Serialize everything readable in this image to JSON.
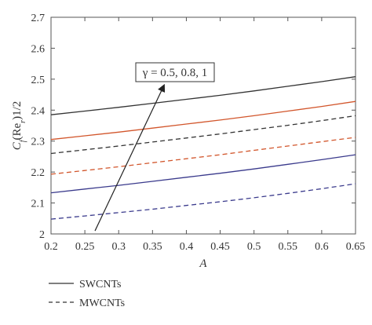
{
  "chart_data": {
    "type": "line",
    "xlabel": "A",
    "ylabel": "Cf(Rer)1/2",
    "ylabel_parts": {
      "main": "C",
      "sub1": "f",
      "paren_open": "(Re",
      "sub2": "r",
      "rest": ")1/2"
    },
    "xlim": [
      0.2,
      0.65
    ],
    "ylim": [
      2.0,
      2.7
    ],
    "x_ticks": [
      "0.2",
      "0.25",
      "0.3",
      "0.35",
      "0.4",
      "0.45",
      "0.5",
      "0.55",
      "0.6",
      "0.65"
    ],
    "y_ticks": [
      "2",
      "2.1",
      "2.2",
      "2.3",
      "2.4",
      "2.5",
      "2.6",
      "2.7"
    ],
    "grid": false,
    "x": [
      0.2,
      0.25,
      0.3,
      0.35,
      0.4,
      0.45,
      0.5,
      0.55,
      0.6,
      0.65
    ],
    "series": [
      {
        "group": "SWCNTs",
        "dash": "solid",
        "color": "#333333",
        "values": [
          2.385,
          2.397,
          2.409,
          2.422,
          2.435,
          2.448,
          2.462,
          2.477,
          2.492,
          2.508
        ]
      },
      {
        "group": "SWCNTs",
        "dash": "solid",
        "color": "#d2562c",
        "values": [
          2.305,
          2.317,
          2.329,
          2.342,
          2.355,
          2.368,
          2.382,
          2.397,
          2.412,
          2.428
        ]
      },
      {
        "group": "SWCNTs",
        "dash": "solid",
        "color": "#3a3a8c",
        "values": [
          2.133,
          2.145,
          2.157,
          2.17,
          2.183,
          2.196,
          2.21,
          2.225,
          2.24,
          2.256
        ]
      },
      {
        "group": "MWCNTs",
        "dash": "dashed",
        "color": "#333333",
        "values": [
          2.26,
          2.272,
          2.284,
          2.297,
          2.31,
          2.323,
          2.337,
          2.351,
          2.366,
          2.382
        ]
      },
      {
        "group": "MWCNTs",
        "dash": "dashed",
        "color": "#d2562c",
        "values": [
          2.193,
          2.205,
          2.217,
          2.23,
          2.243,
          2.256,
          2.27,
          2.284,
          2.298,
          2.312
        ]
      },
      {
        "group": "MWCNTs",
        "dash": "dashed",
        "color": "#3a3a8c",
        "values": [
          2.048,
          2.058,
          2.069,
          2.08,
          2.092,
          2.104,
          2.117,
          2.131,
          2.146,
          2.162
        ]
      }
    ],
    "annotation": {
      "text": "γ = 0.5, 0.8, 1",
      "arrow_from": [
        0.265,
        2.01
      ],
      "arrow_to": [
        0.367,
        2.48
      ]
    },
    "legend": {
      "placement": "bottom-left",
      "entries": [
        {
          "label": "SWCNTs",
          "dash": "solid"
        },
        {
          "label": "MWCNTs",
          "dash": "dashed"
        }
      ]
    }
  }
}
